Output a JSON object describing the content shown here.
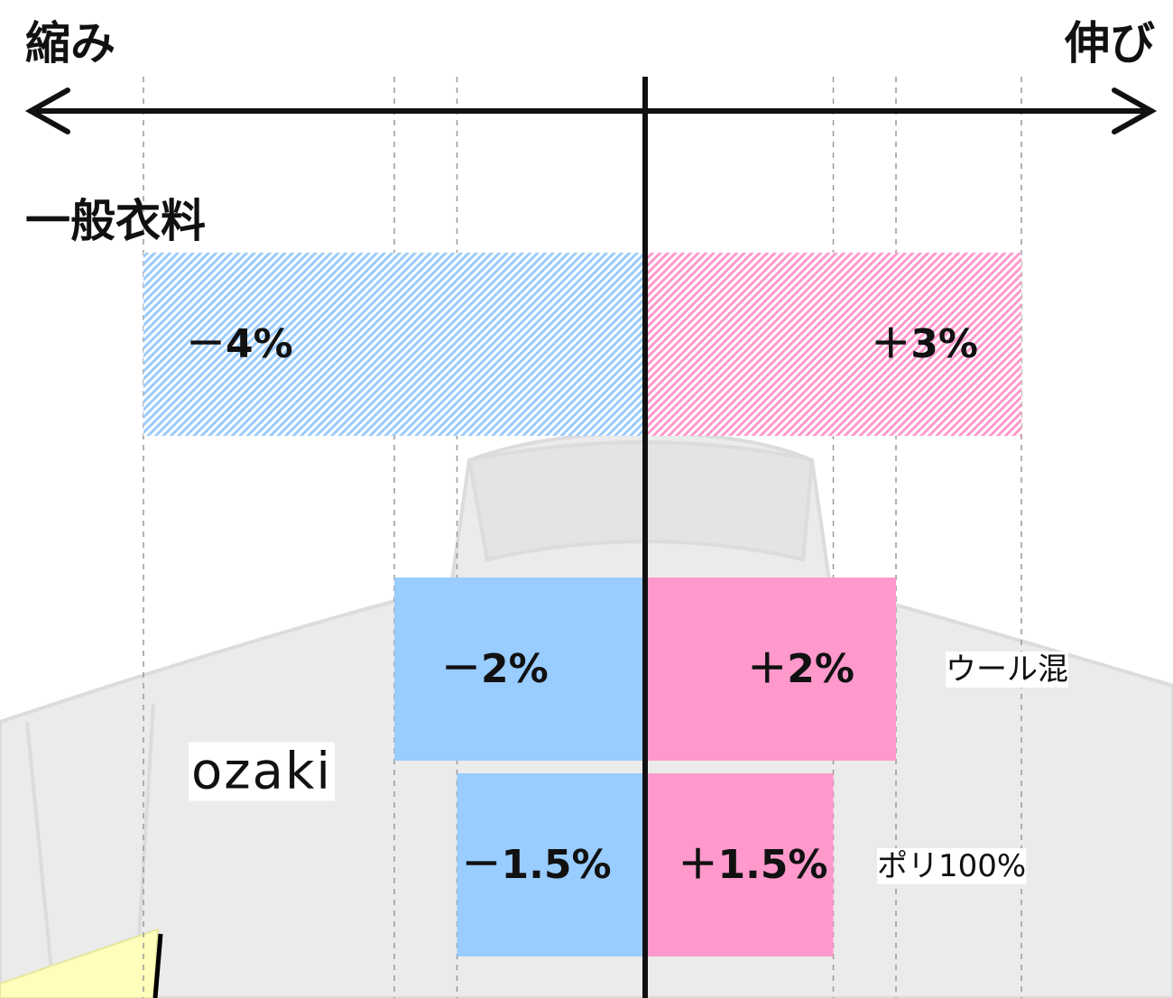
{
  "chart_data": {
    "type": "diverging-bar",
    "left_label": "縮み",
    "right_label": "伸び",
    "group_label": "ozaki",
    "categories": [
      "一般衣料",
      "ウール混",
      "ポリ100%"
    ],
    "hatch": [
      true,
      false,
      false
    ],
    "series": [
      {
        "color": "#99ccff",
        "values": [
          -4,
          -2,
          -1.5
        ],
        "value_labels": [
          "－4%",
          "－2%",
          "－1.5%"
        ]
      },
      {
        "color": "#ff99cc",
        "values": [
          3,
          2,
          1.5
        ],
        "value_labels": [
          "＋3%",
          "＋2%",
          "＋1.5%"
        ]
      }
    ],
    "xlim": [
      -5,
      4
    ],
    "xticks": [
      -4,
      -2,
      -1.5,
      0,
      1.5,
      2,
      3
    ],
    "grid": true
  }
}
